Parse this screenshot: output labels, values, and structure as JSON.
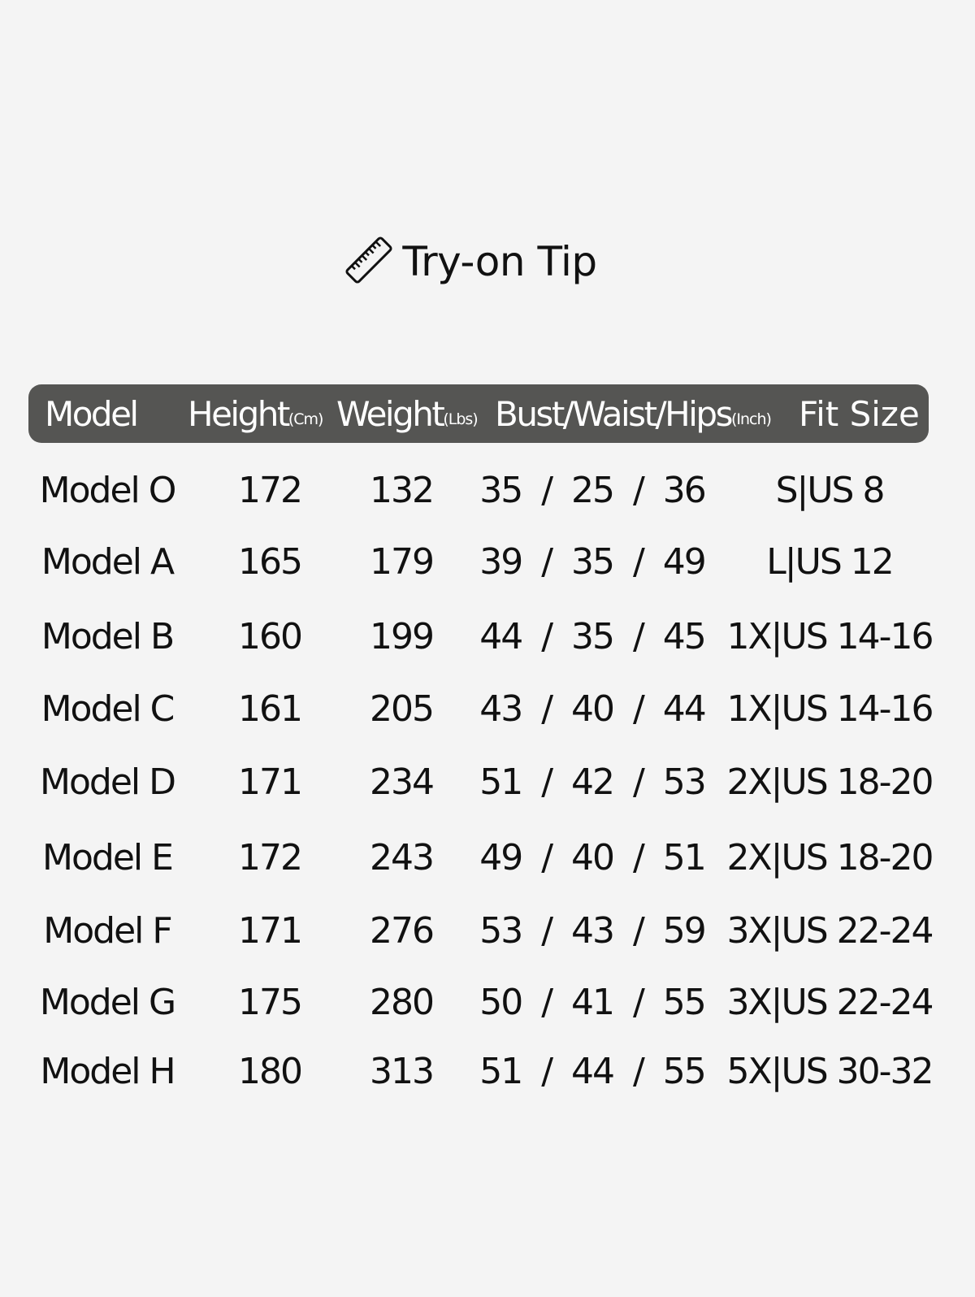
{
  "title": {
    "text": "Try-on Tip",
    "icon": "ruler-icon"
  },
  "header": {
    "model": "Model",
    "height": "Height",
    "height_unit": "(Cm)",
    "weight": "Weight",
    "weight_unit": "(Lbs)",
    "bwh": "Bust/Waist/Hips",
    "bwh_unit": "(Inch)",
    "fit": "Fit Size"
  },
  "rows": [
    {
      "model": "Model O",
      "height": "172",
      "weight": "132",
      "bwh": "35  /  25  /  36",
      "fit": "S|US 8"
    },
    {
      "model": "Model A",
      "height": "165",
      "weight": "179",
      "bwh": "39  /  35  /  49",
      "fit": "L|US 12"
    },
    {
      "model": "Model B",
      "height": "160",
      "weight": "199",
      "bwh": "44  /  35  /  45",
      "fit": "1X|US 14-16"
    },
    {
      "model": "Model C",
      "height": "161",
      "weight": "205",
      "bwh": "43  /  40  /  44",
      "fit": "1X|US 14-16"
    },
    {
      "model": "Model D",
      "height": "171",
      "weight": "234",
      "bwh": "51  /  42  /  53",
      "fit": "2X|US 18-20"
    },
    {
      "model": "Model E",
      "height": "172",
      "weight": "243",
      "bwh": "49  /  40  /  51",
      "fit": "2X|US 18-20"
    },
    {
      "model": "Model F",
      "height": "171",
      "weight": "276",
      "bwh": "53  /  43  /  59",
      "fit": "3X|US 22-24"
    },
    {
      "model": "Model G",
      "height": "175",
      "weight": "280",
      "bwh": "50  /  41  /  55",
      "fit": "3X|US 22-24"
    },
    {
      "model": "Model H",
      "height": "180",
      "weight": "313",
      "bwh": "51  /  44  /  55",
      "fit": "5X|US 30-32"
    }
  ],
  "colors": {
    "background": "#f4f4f4",
    "header": "#555553",
    "text": "#111111"
  }
}
